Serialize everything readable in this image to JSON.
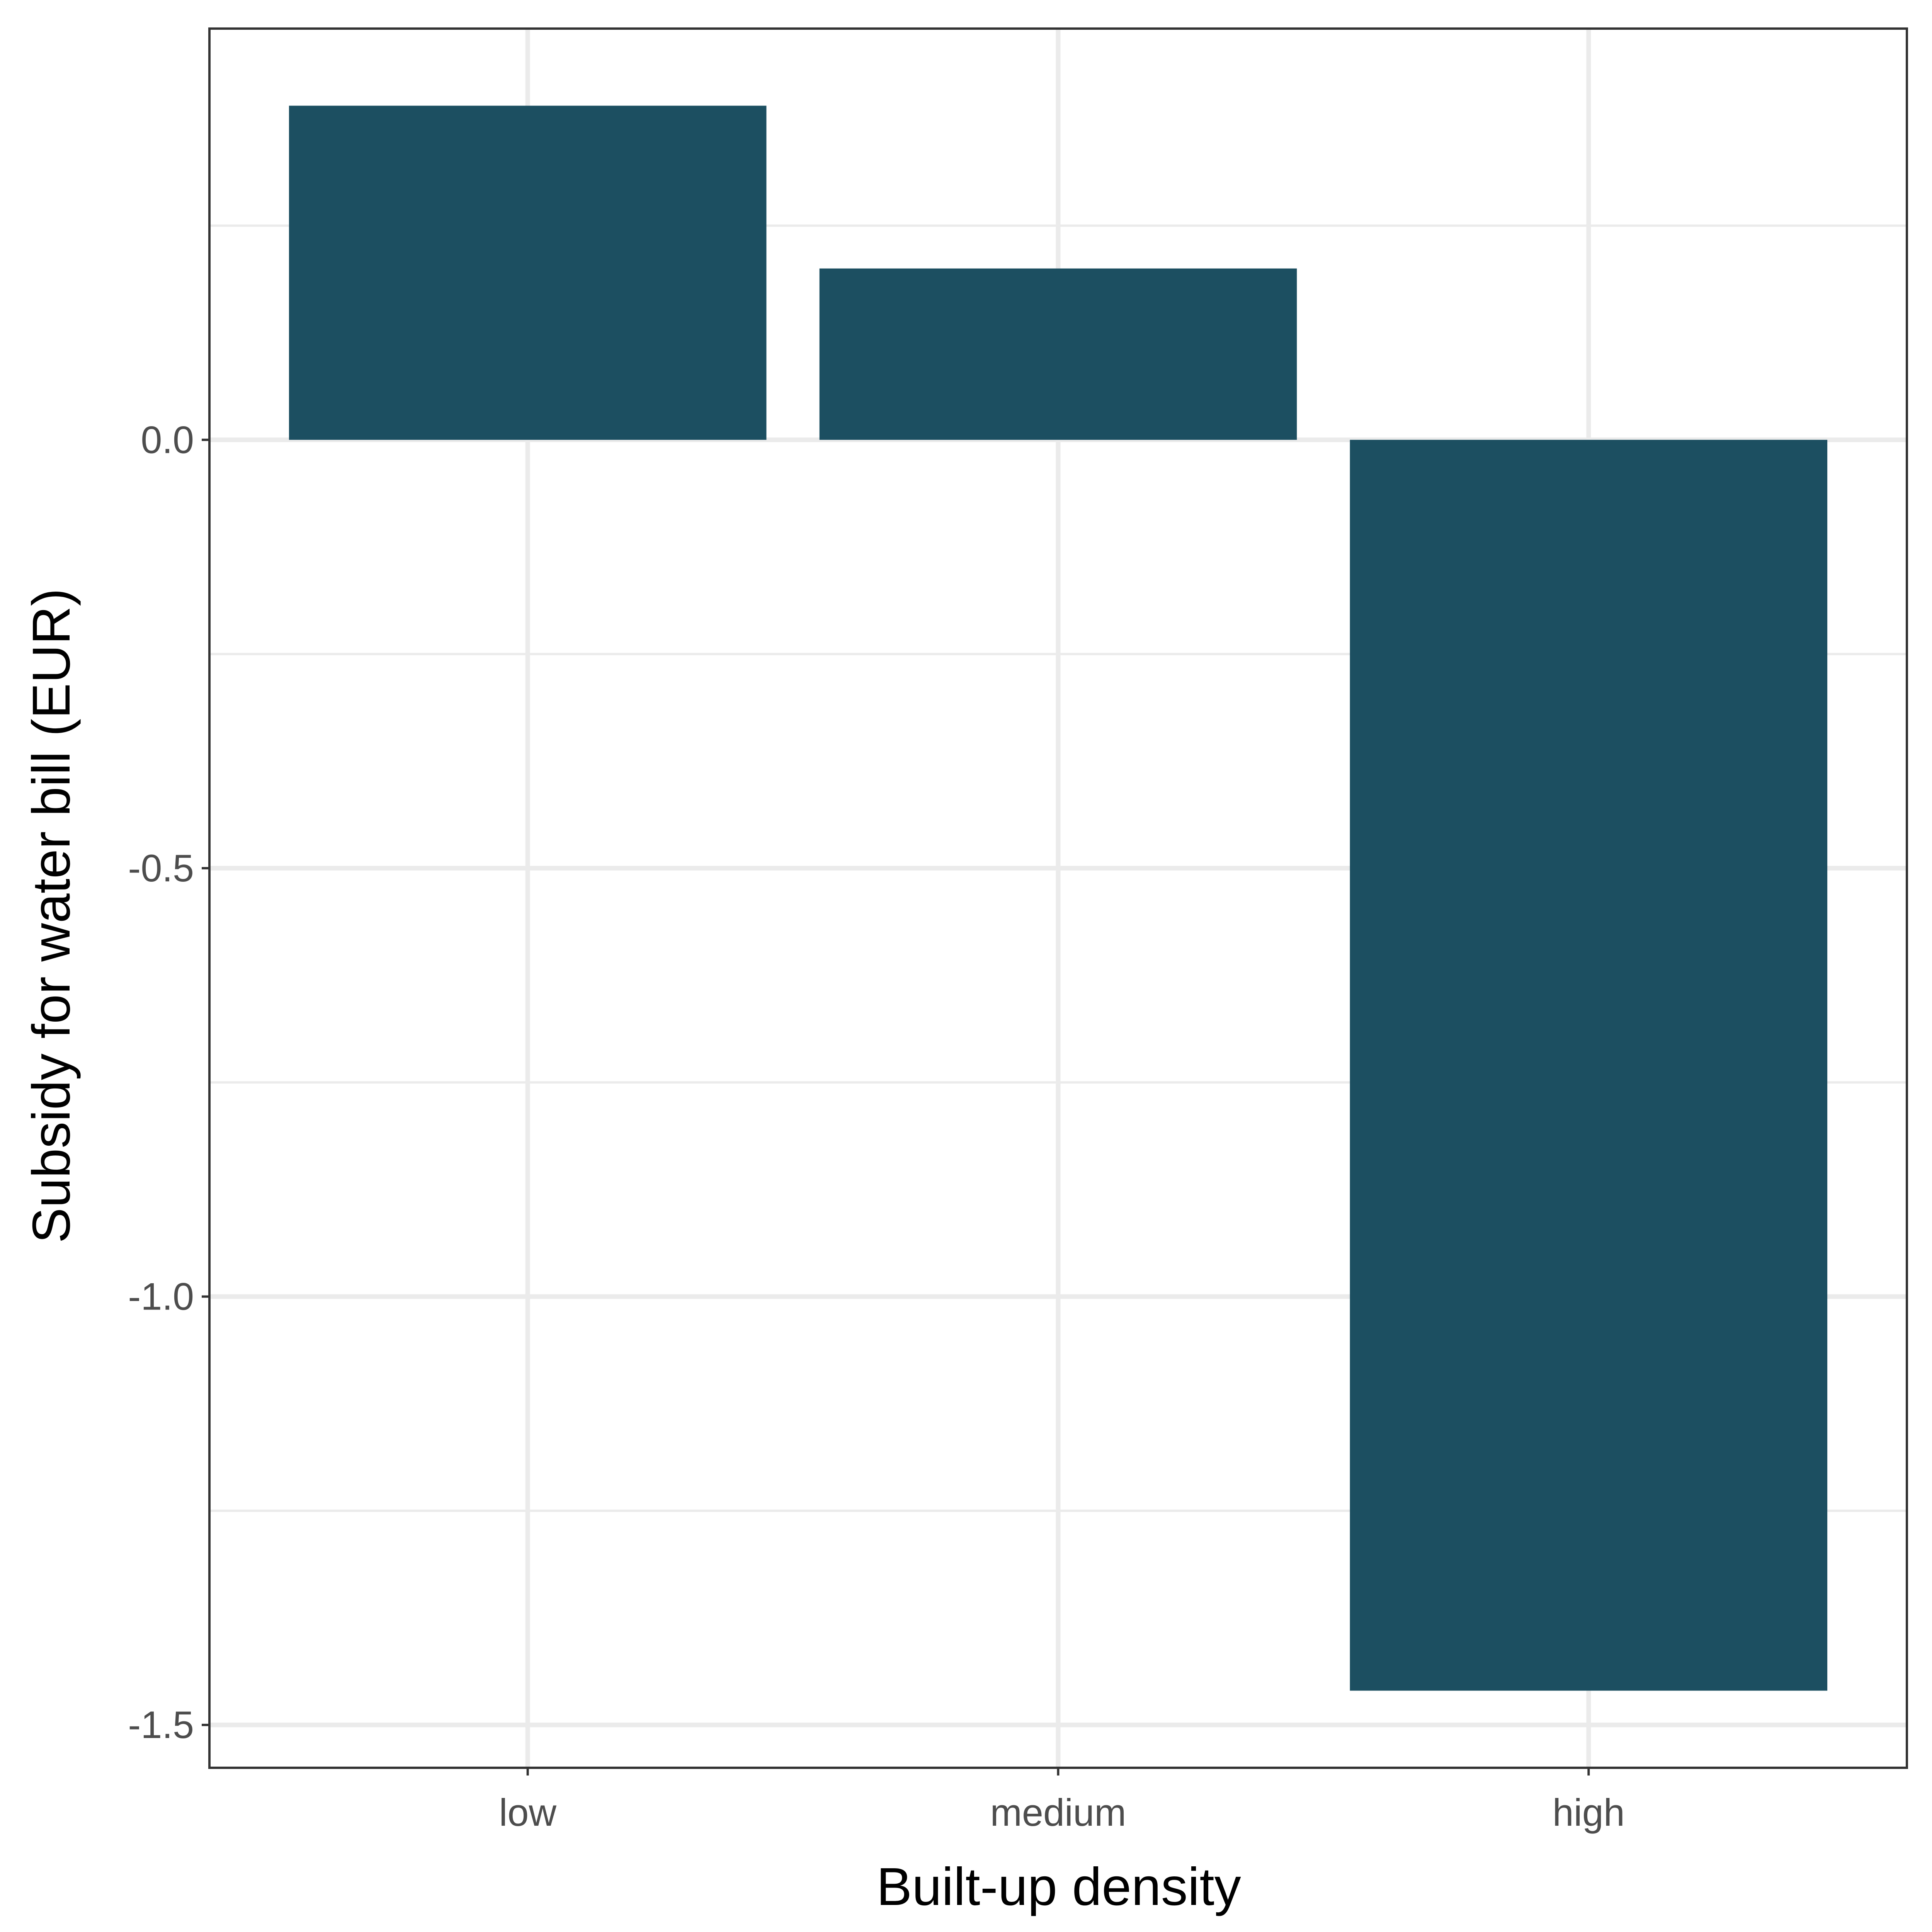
{
  "chart_data": {
    "type": "bar",
    "xlabel": "Built-up density",
    "ylabel": "Subsidy for water bill (EUR)",
    "categories": [
      "low",
      "medium",
      "high"
    ],
    "values": [
      0.39,
      0.2,
      -1.46
    ],
    "ylim": [
      -1.55,
      0.48
    ],
    "yticks": [
      0.0,
      -0.5,
      -1.0,
      -1.5
    ],
    "ytick_labels": [
      "0.0",
      "-0.5",
      "-1.0",
      "-1.5"
    ],
    "grid": true,
    "legend": "none",
    "colors": {
      "bar": "#1C4F61",
      "grid": "#EBEBEB",
      "panel_border": "#333333",
      "tick_text": "#4D4D4D",
      "axis_title": "#000000"
    }
  }
}
